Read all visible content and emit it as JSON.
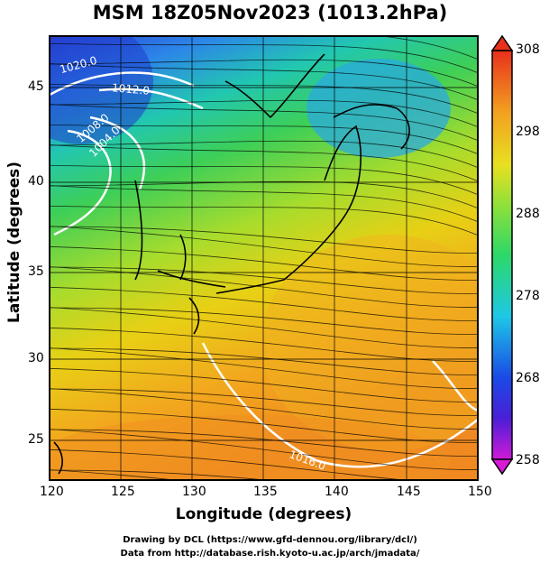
{
  "title": "MSM 18Z05Nov2023 (1013.2hPa)",
  "xaxis": {
    "label": "Longitude (degrees)",
    "ticks": [
      "120",
      "125",
      "130",
      "135",
      "140",
      "145",
      "150"
    ]
  },
  "yaxis": {
    "label": "Latitude (degrees)",
    "ticks": [
      "45",
      "40",
      "35",
      "30",
      "25"
    ]
  },
  "colorbar": {
    "ticks": [
      "308",
      "298",
      "288",
      "278",
      "268",
      "258"
    ],
    "min": 258,
    "max": 308
  },
  "isobars": [
    "1020.0",
    "1012.0",
    "1008.0",
    "1004.0",
    "1016.0"
  ],
  "credits": {
    "line1": "Drawing by DCL (https://www.gfd-dennou.org/library/dcl/)",
    "line2": "Data from http://database.rish.kyoto-u.ac.jp/arch/jmadata/"
  }
}
